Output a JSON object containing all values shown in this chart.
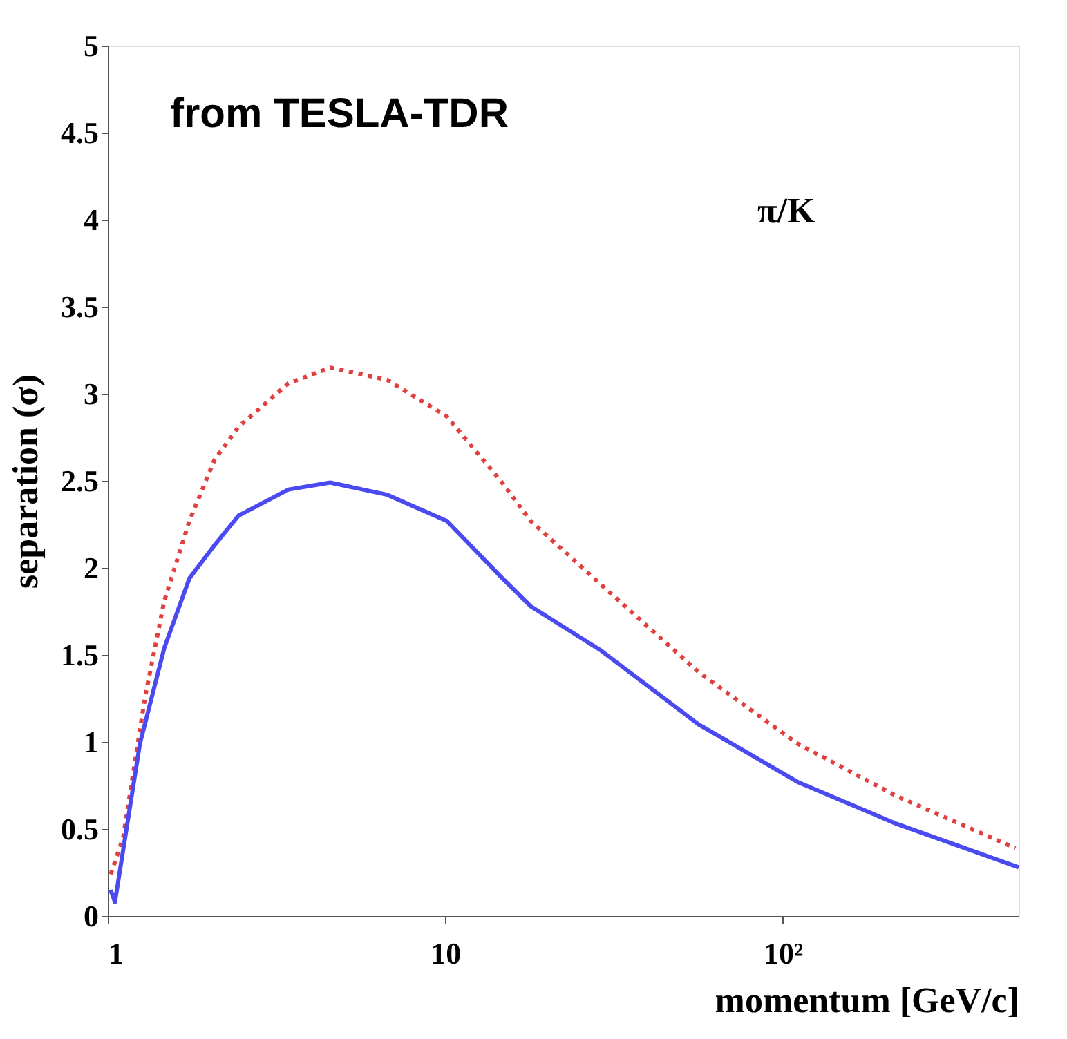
{
  "chart_data": {
    "type": "line",
    "xlabel": "momentum [GeV/c]",
    "ylabel": "separation (σ)",
    "annotations": [
      "from TESLA-TDR",
      "π/K"
    ],
    "log": "x",
    "grid": false,
    "xlim": [
      1,
      500
    ],
    "xticks": [
      1,
      10,
      {
        "value": 100,
        "label": "10²"
      }
    ],
    "ylim": [
      0,
      5
    ],
    "yticks": [
      0,
      0.5,
      1,
      1.5,
      2,
      2.5,
      3,
      3.5,
      4,
      4.5,
      5
    ],
    "series": [
      {
        "color": "#e04040",
        "line_style": "dotted",
        "x": [
          1.02,
          1.11,
          1.29,
          1.47,
          1.745,
          2.07,
          2.44,
          3.43,
          4.56,
          6.73,
          10.1,
          14.6,
          17.9,
          28.7,
          56.4,
          110.7,
          217,
          489
        ],
        "values": [
          0.24,
          0.45,
          1.26,
          1.81,
          2.27,
          2.62,
          2.81,
          3.06,
          3.15,
          3.08,
          2.87,
          2.5,
          2.27,
          1.91,
          1.4,
          0.99,
          0.69,
          0.39
        ]
      },
      {
        "color": "#4a4af0",
        "line_style": "solid",
        "x": [
          1.02,
          1.05,
          1.245,
          1.47,
          1.745,
          2.07,
          2.44,
          3.43,
          4.56,
          6.73,
          10.1,
          14.6,
          17.9,
          28.7,
          56.4,
          110.7,
          217,
          500
        ],
        "values": [
          0.15,
          0.08,
          0.99,
          1.54,
          1.94,
          2.13,
          2.3,
          2.45,
          2.49,
          2.42,
          2.27,
          1.95,
          1.78,
          1.53,
          1.1,
          0.77,
          0.53,
          0.28
        ]
      }
    ]
  }
}
